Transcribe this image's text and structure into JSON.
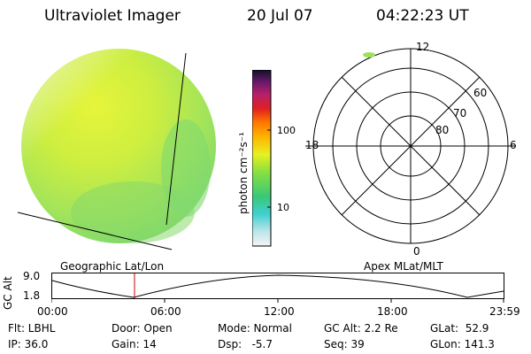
{
  "header": {
    "instrument": "Ultraviolet Imager",
    "date": "20 Jul 07",
    "time": "04:22:23 UT"
  },
  "colorbar": {
    "unit_label": "photon cm⁻²s⁻¹",
    "ticks": [
      "100",
      "10"
    ]
  },
  "polar_plot": {
    "mlt_labels": {
      "top": "12",
      "left": "18",
      "right": "6",
      "bottom": "0"
    },
    "mlat_labels": [
      "60",
      "70",
      "80"
    ]
  },
  "plot_titles": {
    "geographic": "Geographic Lat/Lon",
    "apex": "Apex MLat/MLT"
  },
  "altitude_plot": {
    "ylabel": "GC Alt",
    "y_ticks": [
      "9.0",
      "1.8"
    ],
    "x_ticks": [
      "00:00",
      "06:00",
      "12:00",
      "18:00",
      "23:59"
    ]
  },
  "info": {
    "flt": "Flt: LBHL",
    "ip": "IP: 36.0",
    "door": "Door: Open",
    "gain": "Gain: 14",
    "mode": "Mode: Normal",
    "dsp": "Dsp:   -5.7",
    "gc_alt": "GC Alt: 2.2 Re",
    "seq": "Seq: 39",
    "glat": "GLat:  52.9",
    "glon": "GLon: 141.3"
  },
  "colors": {
    "disk_main": "#c8ee44",
    "disk_edge": "#7fe06a",
    "marker": "#cc0000"
  }
}
